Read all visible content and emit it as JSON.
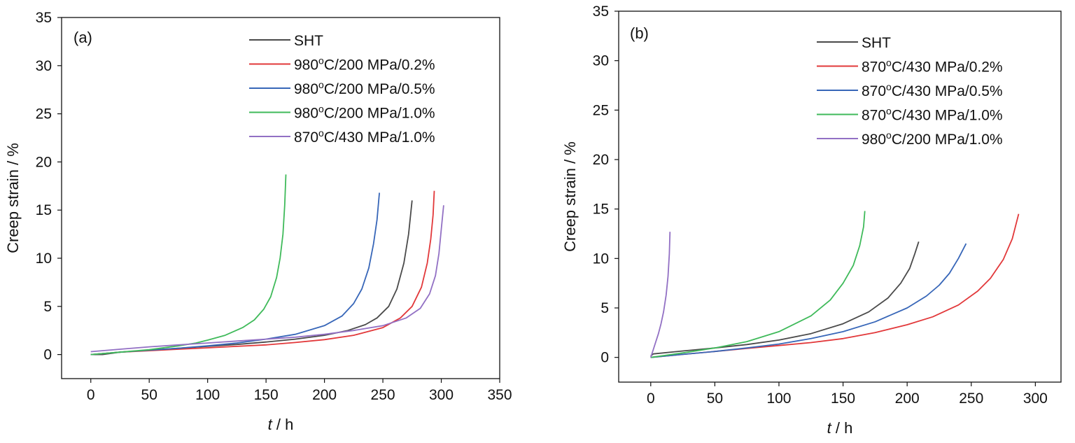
{
  "chart_data": [
    {
      "type": "line",
      "panel_label": "(a)",
      "xlabel_italic": "t",
      "xlabel_rest": " / h",
      "ylabel": "Creep strain / %",
      "xlim": [
        -25,
        350
      ],
      "ylim": [
        -2.5,
        35
      ],
      "xticks": [
        0,
        50,
        100,
        150,
        200,
        250,
        300,
        350
      ],
      "yticks": [
        0,
        5,
        10,
        15,
        20,
        25,
        30,
        35
      ],
      "grid": false,
      "legend_position": "top-right",
      "series": [
        {
          "name": "SHT",
          "sup": "",
          "rest": "",
          "color": "#4a4a4a",
          "x": [
            0,
            10,
            25,
            50,
            75,
            100,
            125,
            150,
            175,
            200,
            220,
            235,
            245,
            255,
            262,
            268,
            272,
            275
          ],
          "y": [
            0,
            0,
            0.25,
            0.45,
            0.65,
            0.85,
            1.05,
            1.3,
            1.6,
            2.0,
            2.5,
            3.1,
            3.8,
            5.0,
            6.8,
            9.5,
            12.5,
            16.0
          ]
        },
        {
          "name": "980",
          "sup": "o",
          "rest": "C/200 MPa/0.2%",
          "color": "#e2383a",
          "x": [
            0,
            25,
            50,
            75,
            100,
            125,
            150,
            175,
            200,
            225,
            250,
            265,
            275,
            283,
            288,
            291,
            293,
            294
          ],
          "y": [
            0,
            0.25,
            0.4,
            0.55,
            0.7,
            0.85,
            1.0,
            1.25,
            1.55,
            2.0,
            2.8,
            3.8,
            5.0,
            7.0,
            9.5,
            12.0,
            14.5,
            17.0
          ]
        },
        {
          "name": "980",
          "sup": "o",
          "rest": "C/200 MPa/0.5%",
          "color": "#3766b8",
          "x": [
            0,
            25,
            50,
            75,
            100,
            125,
            150,
            175,
            200,
            215,
            225,
            232,
            238,
            242,
            245,
            247
          ],
          "y": [
            0,
            0.25,
            0.45,
            0.65,
            0.9,
            1.2,
            1.6,
            2.1,
            3.0,
            4.0,
            5.3,
            6.8,
            9.0,
            11.5,
            14.0,
            16.8
          ]
        },
        {
          "name": "980",
          "sup": "o",
          "rest": "C/200 MPa/1.0%",
          "color": "#3fba5a",
          "x": [
            0,
            25,
            50,
            75,
            90,
            100,
            115,
            130,
            140,
            148,
            154,
            159,
            162,
            164.5,
            166,
            167
          ],
          "y": [
            0,
            0.25,
            0.5,
            0.9,
            1.2,
            1.5,
            2.0,
            2.8,
            3.6,
            4.7,
            6.0,
            8.0,
            10.0,
            12.5,
            15.5,
            18.7
          ]
        },
        {
          "name": "870",
          "sup": "o",
          "rest": "C/430 MPa/1.0%",
          "color": "#9270c4",
          "x": [
            0,
            25,
            50,
            75,
            100,
            125,
            150,
            175,
            200,
            225,
            250,
            270,
            282,
            290,
            295,
            298,
            300,
            302
          ],
          "y": [
            0.3,
            0.55,
            0.8,
            1.0,
            1.2,
            1.4,
            1.6,
            1.8,
            2.1,
            2.5,
            3.0,
            3.8,
            4.8,
            6.3,
            8.2,
            10.5,
            13.0,
            15.5
          ]
        }
      ]
    },
    {
      "type": "line",
      "panel_label": "(b)",
      "xlabel_italic": "t",
      "xlabel_rest": " / h",
      "ylabel": "Creep strain / %",
      "xlim": [
        -25,
        320
      ],
      "ylim": [
        -2.5,
        35
      ],
      "xticks": [
        0,
        50,
        100,
        150,
        200,
        250,
        300
      ],
      "yticks": [
        0,
        5,
        10,
        15,
        20,
        25,
        30,
        35
      ],
      "grid": false,
      "legend_position": "top-right",
      "series": [
        {
          "name": "SHT",
          "sup": "",
          "rest": "",
          "color": "#4a4a4a",
          "x": [
            0,
            2,
            25,
            50,
            75,
            100,
            125,
            150,
            170,
            185,
            195,
            202,
            206,
            209
          ],
          "y": [
            0.15,
            0.35,
            0.65,
            0.95,
            1.3,
            1.75,
            2.4,
            3.4,
            4.6,
            6.0,
            7.5,
            9.0,
            10.5,
            11.7
          ]
        },
        {
          "name": "870",
          "sup": "o",
          "rest": "C/430 MPa/0.2%",
          "color": "#e2383a",
          "x": [
            0,
            25,
            50,
            75,
            100,
            125,
            150,
            175,
            200,
            220,
            240,
            255,
            265,
            275,
            282,
            287
          ],
          "y": [
            0,
            0.3,
            0.6,
            0.9,
            1.2,
            1.5,
            1.9,
            2.5,
            3.3,
            4.1,
            5.3,
            6.7,
            8.0,
            9.9,
            12.0,
            14.5
          ]
        },
        {
          "name": "870",
          "sup": "o",
          "rest": "C/430 MPa/0.5%",
          "color": "#3766b8",
          "x": [
            0,
            25,
            50,
            75,
            100,
            125,
            150,
            175,
            200,
            215,
            225,
            233,
            240,
            246
          ],
          "y": [
            0,
            0.3,
            0.6,
            0.95,
            1.35,
            1.9,
            2.6,
            3.6,
            5.0,
            6.2,
            7.3,
            8.5,
            10.0,
            11.5
          ]
        },
        {
          "name": "870",
          "sup": "o",
          "rest": "C/430 MPa/1.0%",
          "color": "#3fba5a",
          "x": [
            0,
            25,
            50,
            75,
            100,
            125,
            140,
            150,
            158,
            163,
            166,
            167
          ],
          "y": [
            0,
            0.45,
            0.95,
            1.6,
            2.6,
            4.2,
            5.8,
            7.5,
            9.3,
            11.3,
            13.2,
            14.8
          ]
        },
        {
          "name": "980",
          "sup": "o",
          "rest": "C/200 MPa/1.0%",
          "color": "#9270c4",
          "x": [
            0,
            2,
            4,
            6,
            8,
            10,
            12,
            13.5,
            14.5,
            15
          ],
          "y": [
            0,
            0.8,
            1.6,
            2.4,
            3.4,
            4.6,
            6.3,
            8.2,
            10.5,
            12.7
          ]
        }
      ]
    }
  ]
}
